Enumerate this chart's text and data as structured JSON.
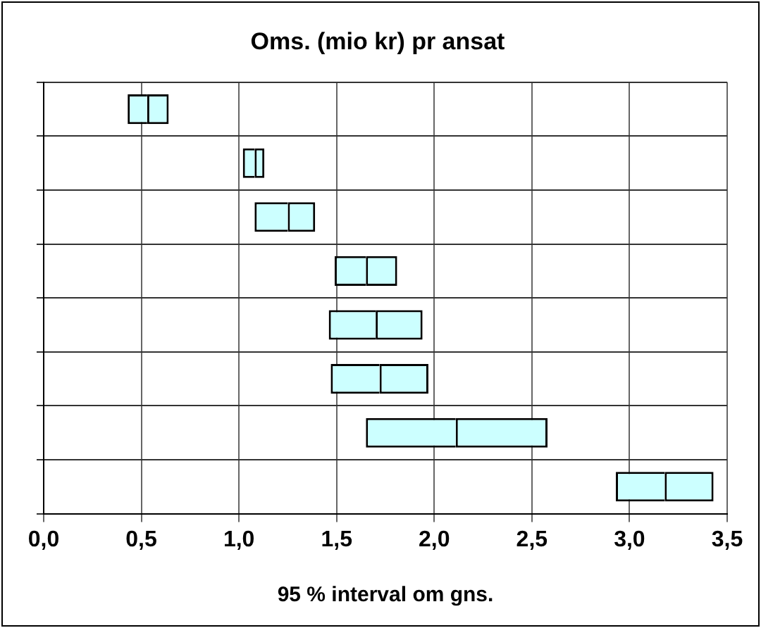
{
  "chart_data": {
    "type": "bar",
    "orientation": "horizontal",
    "title": "Oms. (mio kr) pr ansat",
    "xlabel": "95 % interval om gns.",
    "categories": [
      null,
      null,
      null,
      null,
      null,
      null,
      null,
      null
    ],
    "series": [
      {
        "color": "#ccffff",
        "base": [
          0.43,
          1.02,
          1.08,
          1.49,
          1.46,
          1.47,
          1.65,
          2.93
        ],
        "values": [
          0.1,
          0.06,
          0.17,
          0.16,
          0.24,
          0.25,
          0.46,
          0.25
        ]
      },
      {
        "color": "#ccffff",
        "base": [
          0.53,
          1.08,
          1.25,
          1.65,
          1.7,
          1.72,
          2.11,
          3.18
        ],
        "values": [
          0.11,
          0.05,
          0.14,
          0.16,
          0.24,
          0.25,
          0.47,
          0.25
        ]
      }
    ],
    "xlim": [
      0,
      3.5
    ],
    "xticks": [
      {
        "value": 0,
        "label": "0,0"
      },
      {
        "value": 0.5,
        "label": "0,5"
      },
      {
        "value": 1,
        "label": "1,0"
      },
      {
        "value": 1.5,
        "label": "1,5"
      },
      {
        "value": 2,
        "label": "2,0"
      },
      {
        "value": 2.5,
        "label": "2,5"
      },
      {
        "value": 3,
        "label": "3,0"
      },
      {
        "value": 3.5,
        "label": "3,5"
      }
    ],
    "grid": true,
    "legend": false
  }
}
